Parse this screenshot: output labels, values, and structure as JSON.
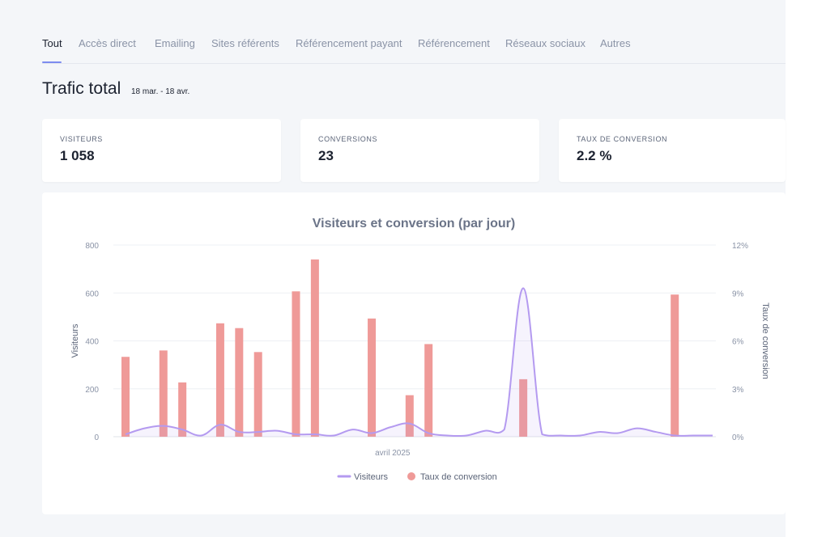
{
  "tabs": [
    {
      "label": "Tout",
      "active": true
    },
    {
      "label": "Accès direct"
    },
    {
      "label": "Emailing"
    },
    {
      "label": "Sites référents"
    },
    {
      "label": "Référencement payant"
    },
    {
      "label": "Référencement"
    },
    {
      "label": "Réseaux sociaux"
    },
    {
      "label": "Autres"
    }
  ],
  "header": {
    "title": "Trafic total",
    "date_range": "18 mar. - 18 avr."
  },
  "stats": [
    {
      "label": "VISITEURS",
      "value": "1 058"
    },
    {
      "label": "CONVERSIONS",
      "value": "23"
    },
    {
      "label": "TAUX DE CONVERSION",
      "value": "2.2 %"
    }
  ],
  "colors": {
    "accent": "#7d8cf0",
    "visitors_line": "#b49af0",
    "conversion_bar": "#ef9a98"
  },
  "chart_data": {
    "type": "bar",
    "title": "Visiteurs et conversion (par jour)",
    "xlabel": "",
    "x_tick_labels": [
      "avril 2025"
    ],
    "x": [
      "03-18",
      "03-19",
      "03-20",
      "03-21",
      "03-22",
      "03-23",
      "03-24",
      "03-25",
      "03-26",
      "03-27",
      "03-28",
      "03-29",
      "03-30",
      "03-31",
      "04-01",
      "04-02",
      "04-03",
      "04-04",
      "04-05",
      "04-06",
      "04-07",
      "04-08",
      "04-09",
      "04-10",
      "04-11",
      "04-12",
      "04-13",
      "04-14",
      "04-15",
      "04-16",
      "04-17",
      "04-18"
    ],
    "y_left": {
      "label": "Visiteurs",
      "lim": [
        0,
        800
      ],
      "ticks": [
        "0",
        "200",
        "400",
        "600",
        "800"
      ]
    },
    "y_right": {
      "label": "Taux de conversion",
      "lim": [
        0,
        12
      ],
      "ticks": [
        "0%",
        "3%",
        "6%",
        "9%",
        "12%"
      ]
    },
    "grid": true,
    "legend_position": "bottom",
    "series": [
      {
        "name": "Visiteurs",
        "type": "area",
        "axis": "left",
        "values": [
          10,
          35,
          45,
          30,
          5,
          50,
          20,
          20,
          25,
          10,
          10,
          5,
          30,
          15,
          40,
          55,
          15,
          5,
          5,
          25,
          30,
          620,
          10,
          5,
          5,
          20,
          15,
          35,
          20,
          5,
          5,
          5
        ]
      },
      {
        "name": "Taux de conversion",
        "type": "bar",
        "axis": "right",
        "values": [
          5.0,
          0,
          5.4,
          3.4,
          0,
          7.1,
          6.8,
          5.3,
          0,
          9.1,
          11.1,
          0,
          0,
          7.4,
          0,
          2.6,
          5.8,
          0,
          0,
          0,
          0,
          3.6,
          0,
          0,
          0,
          0,
          0,
          0,
          0,
          8.9,
          0,
          0
        ]
      }
    ]
  }
}
